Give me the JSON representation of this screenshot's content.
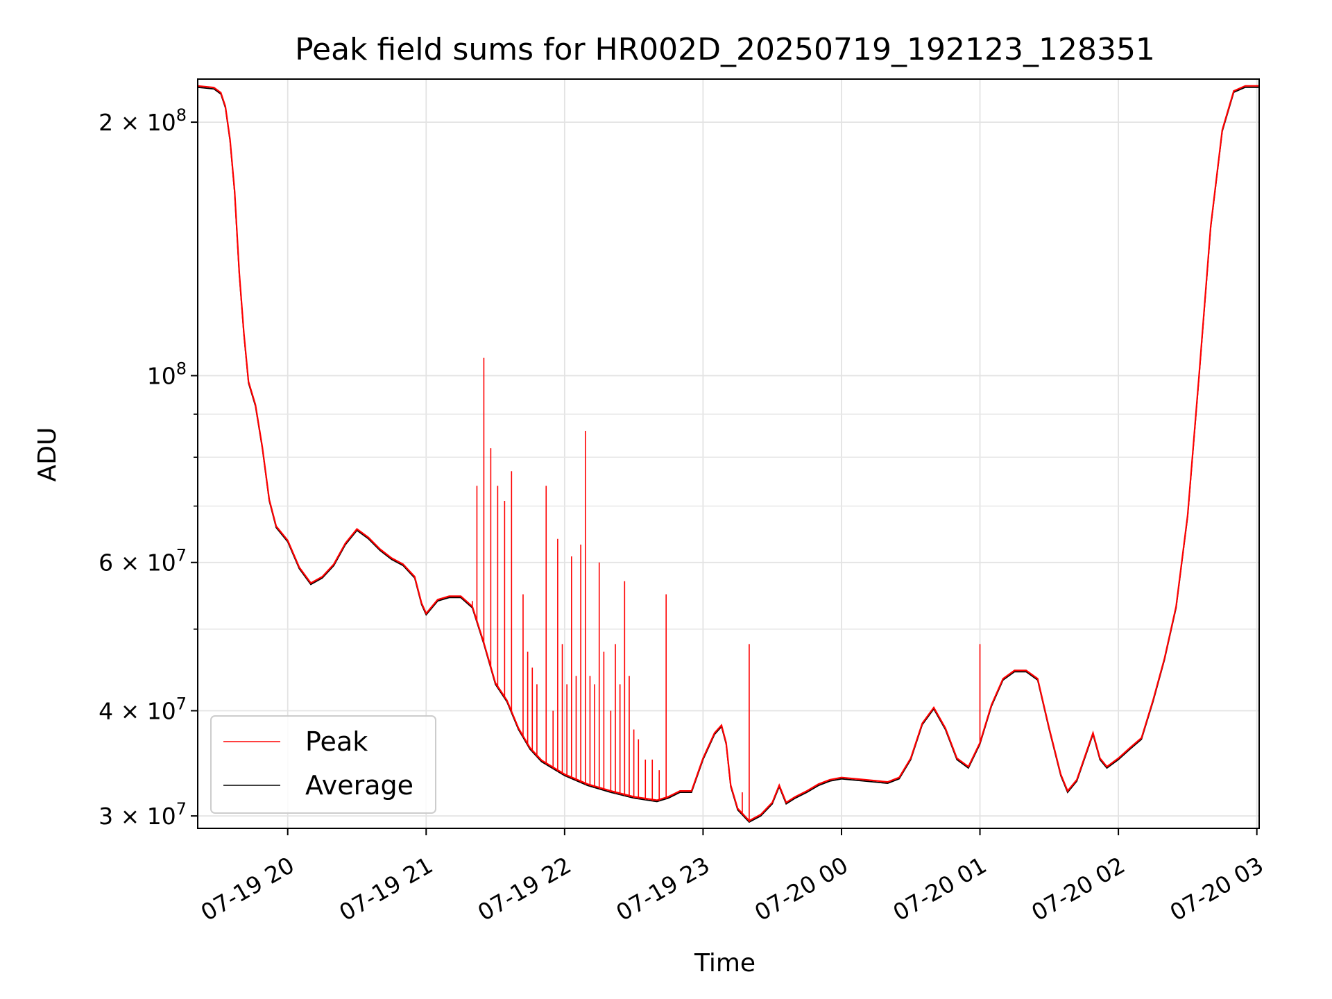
{
  "chart_data": {
    "type": "line",
    "title": "Peak field sums for HR002D_20250719_192123_128351",
    "xlabel": "Time",
    "ylabel": "ADU",
    "yscale": "log",
    "ylim": [
      29000000,
      225000000
    ],
    "xlim": [
      "2025-07-19 19:21",
      "2025-07-20 03:01"
    ],
    "grid": true,
    "legend_position": "lower-left",
    "x_ticks": [
      {
        "t": "2025-07-19 20:00",
        "label": "07-19 20"
      },
      {
        "t": "2025-07-19 21:00",
        "label": "07-19 21"
      },
      {
        "t": "2025-07-19 22:00",
        "label": "07-19 22"
      },
      {
        "t": "2025-07-19 23:00",
        "label": "07-19 23"
      },
      {
        "t": "2025-07-20 00:00",
        "label": "07-20 00"
      },
      {
        "t": "2025-07-20 01:00",
        "label": "07-20 01"
      },
      {
        "t": "2025-07-20 02:00",
        "label": "07-20 02"
      },
      {
        "t": "2025-07-20 03:00",
        "label": "07-20 03"
      }
    ],
    "y_ticks_major": [
      {
        "v": 30000000,
        "base": "3 × 10",
        "exp": "7"
      },
      {
        "v": 40000000,
        "base": "4 × 10",
        "exp": "7"
      },
      {
        "v": 60000000,
        "base": "6 × 10",
        "exp": "7"
      },
      {
        "v": 100000000,
        "base": "10",
        "exp": "8"
      },
      {
        "v": 200000000,
        "base": "2 × 10",
        "exp": "8"
      }
    ],
    "y_ticks_minor": [
      50000000,
      70000000,
      80000000,
      90000000
    ],
    "colors": {
      "Peak": "#ff0000",
      "Average": "#000000"
    },
    "series": [
      {
        "name": "Average",
        "color": "#000000",
        "points": [
          [
            "2025-07-19 19:21",
            220000000
          ],
          [
            "2025-07-19 19:28",
            219000000
          ],
          [
            "2025-07-19 19:31",
            216000000
          ],
          [
            "2025-07-19 19:33",
            208000000
          ],
          [
            "2025-07-19 19:35",
            190000000
          ],
          [
            "2025-07-19 19:37",
            165000000
          ],
          [
            "2025-07-19 19:39",
            132000000
          ],
          [
            "2025-07-19 19:41",
            112000000
          ],
          [
            "2025-07-19 19:43",
            98000000
          ],
          [
            "2025-07-19 19:46",
            92000000
          ],
          [
            "2025-07-19 19:49",
            82000000
          ],
          [
            "2025-07-19 19:52",
            71000000
          ],
          [
            "2025-07-19 19:55",
            66000000
          ],
          [
            "2025-07-19 20:00",
            63500000
          ],
          [
            "2025-07-19 20:05",
            59000000
          ],
          [
            "2025-07-19 20:10",
            56500000
          ],
          [
            "2025-07-19 20:15",
            57500000
          ],
          [
            "2025-07-19 20:20",
            59500000
          ],
          [
            "2025-07-19 20:25",
            63000000
          ],
          [
            "2025-07-19 20:30",
            65500000
          ],
          [
            "2025-07-19 20:35",
            64000000
          ],
          [
            "2025-07-19 20:40",
            62000000
          ],
          [
            "2025-07-19 20:45",
            60500000
          ],
          [
            "2025-07-19 20:50",
            59500000
          ],
          [
            "2025-07-19 20:55",
            57500000
          ],
          [
            "2025-07-19 20:58",
            53500000
          ],
          [
            "2025-07-19 21:00",
            52000000
          ],
          [
            "2025-07-19 21:05",
            54000000
          ],
          [
            "2025-07-19 21:10",
            54500000
          ],
          [
            "2025-07-19 21:15",
            54500000
          ],
          [
            "2025-07-19 21:20",
            53000000
          ],
          [
            "2025-07-19 21:25",
            48000000
          ],
          [
            "2025-07-19 21:30",
            43000000
          ],
          [
            "2025-07-19 21:35",
            41000000
          ],
          [
            "2025-07-19 21:40",
            38000000
          ],
          [
            "2025-07-19 21:45",
            36000000
          ],
          [
            "2025-07-19 21:50",
            34800000
          ],
          [
            "2025-07-19 22:00",
            33500000
          ],
          [
            "2025-07-19 22:10",
            32600000
          ],
          [
            "2025-07-19 22:20",
            32000000
          ],
          [
            "2025-07-19 22:30",
            31500000
          ],
          [
            "2025-07-19 22:40",
            31200000
          ],
          [
            "2025-07-19 22:45",
            31500000
          ],
          [
            "2025-07-19 22:50",
            32000000
          ],
          [
            "2025-07-19 22:55",
            32000000
          ],
          [
            "2025-07-19 23:00",
            35000000
          ],
          [
            "2025-07-19 23:05",
            37500000
          ],
          [
            "2025-07-19 23:08",
            38300000
          ],
          [
            "2025-07-19 23:10",
            36500000
          ],
          [
            "2025-07-19 23:12",
            32500000
          ],
          [
            "2025-07-19 23:15",
            30500000
          ],
          [
            "2025-07-19 23:20",
            29500000
          ],
          [
            "2025-07-19 23:25",
            30000000
          ],
          [
            "2025-07-19 23:30",
            31000000
          ],
          [
            "2025-07-19 23:33",
            32500000
          ],
          [
            "2025-07-19 23:36",
            31000000
          ],
          [
            "2025-07-19 23:40",
            31500000
          ],
          [
            "2025-07-19 23:45",
            32000000
          ],
          [
            "2025-07-19 23:50",
            32600000
          ],
          [
            "2025-07-19 23:55",
            33000000
          ],
          [
            "2025-07-20 00:00",
            33200000
          ],
          [
            "2025-07-20 00:10",
            33000000
          ],
          [
            "2025-07-20 00:20",
            32800000
          ],
          [
            "2025-07-20 00:25",
            33200000
          ],
          [
            "2025-07-20 00:30",
            35000000
          ],
          [
            "2025-07-20 00:35",
            38500000
          ],
          [
            "2025-07-20 00:40",
            40200000
          ],
          [
            "2025-07-20 00:45",
            38000000
          ],
          [
            "2025-07-20 00:50",
            35000000
          ],
          [
            "2025-07-20 00:55",
            34200000
          ],
          [
            "2025-07-20 01:00",
            36500000
          ],
          [
            "2025-07-20 01:05",
            40500000
          ],
          [
            "2025-07-20 01:10",
            43500000
          ],
          [
            "2025-07-20 01:15",
            44500000
          ],
          [
            "2025-07-20 01:20",
            44500000
          ],
          [
            "2025-07-20 01:25",
            43500000
          ],
          [
            "2025-07-20 01:30",
            38000000
          ],
          [
            "2025-07-20 01:35",
            33500000
          ],
          [
            "2025-07-20 01:38",
            32000000
          ],
          [
            "2025-07-20 01:42",
            33000000
          ],
          [
            "2025-07-20 01:46",
            35500000
          ],
          [
            "2025-07-20 01:49",
            37500000
          ],
          [
            "2025-07-20 01:52",
            35000000
          ],
          [
            "2025-07-20 01:55",
            34200000
          ],
          [
            "2025-07-20 02:00",
            35000000
          ],
          [
            "2025-07-20 02:05",
            36000000
          ],
          [
            "2025-07-20 02:10",
            37000000
          ],
          [
            "2025-07-20 02:15",
            41000000
          ],
          [
            "2025-07-20 02:20",
            46000000
          ],
          [
            "2025-07-20 02:25",
            53000000
          ],
          [
            "2025-07-20 02:30",
            68000000
          ],
          [
            "2025-07-20 02:35",
            100000000
          ],
          [
            "2025-07-20 02:40",
            150000000
          ],
          [
            "2025-07-20 02:45",
            195000000
          ],
          [
            "2025-07-20 02:50",
            217000000
          ],
          [
            "2025-07-20 02:55",
            220000000
          ],
          [
            "2025-07-20 03:01",
            220000000
          ]
        ]
      },
      {
        "name": "Peak",
        "color": "#ff0000",
        "spikes": [
          [
            "2025-07-19 21:20",
            54000000
          ],
          [
            "2025-07-19 21:22",
            74000000
          ],
          [
            "2025-07-19 21:25",
            105000000
          ],
          [
            "2025-07-19 21:28",
            82000000
          ],
          [
            "2025-07-19 21:31",
            74000000
          ],
          [
            "2025-07-19 21:34",
            71000000
          ],
          [
            "2025-07-19 21:37",
            77000000
          ],
          [
            "2025-07-19 21:42",
            55000000
          ],
          [
            "2025-07-19 21:44",
            47000000
          ],
          [
            "2025-07-19 21:46",
            45000000
          ],
          [
            "2025-07-19 21:48",
            43000000
          ],
          [
            "2025-07-19 21:52",
            74000000
          ],
          [
            "2025-07-19 21:55",
            40000000
          ],
          [
            "2025-07-19 21:57",
            64000000
          ],
          [
            "2025-07-19 21:59",
            48000000
          ],
          [
            "2025-07-19 22:01",
            43000000
          ],
          [
            "2025-07-19 22:03",
            61000000
          ],
          [
            "2025-07-19 22:05",
            44000000
          ],
          [
            "2025-07-19 22:07",
            63000000
          ],
          [
            "2025-07-19 22:09",
            86000000
          ],
          [
            "2025-07-19 22:11",
            44000000
          ],
          [
            "2025-07-19 22:13",
            43000000
          ],
          [
            "2025-07-19 22:15",
            60000000
          ],
          [
            "2025-07-19 22:17",
            47000000
          ],
          [
            "2025-07-19 22:20",
            40000000
          ],
          [
            "2025-07-19 22:22",
            48000000
          ],
          [
            "2025-07-19 22:24",
            43000000
          ],
          [
            "2025-07-19 22:26",
            57000000
          ],
          [
            "2025-07-19 22:28",
            44000000
          ],
          [
            "2025-07-19 22:30",
            38000000
          ],
          [
            "2025-07-19 22:32",
            37000000
          ],
          [
            "2025-07-19 22:35",
            35000000
          ],
          [
            "2025-07-19 22:38",
            35000000
          ],
          [
            "2025-07-19 22:41",
            34000000
          ],
          [
            "2025-07-19 22:44",
            55000000
          ],
          [
            "2025-07-19 23:17",
            32000000
          ],
          [
            "2025-07-19 23:20",
            48000000
          ],
          [
            "2025-07-20 01:00",
            48000000
          ]
        ]
      }
    ]
  },
  "legend": {
    "items": [
      {
        "label": "Peak",
        "color": "#ff0000"
      },
      {
        "label": "Average",
        "color": "#000000"
      }
    ]
  }
}
